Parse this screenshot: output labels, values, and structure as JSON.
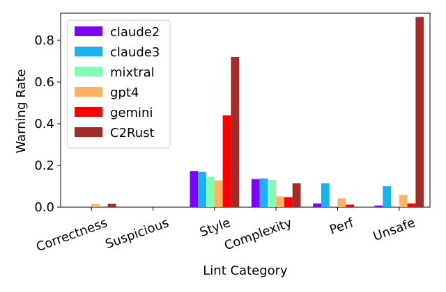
{
  "chart_data": {
    "type": "bar",
    "xlabel": "Lint Category",
    "ylabel": "Warning Rate",
    "categories": [
      "Correctness",
      "Suspicious",
      "Style",
      "Complexity",
      "Perf",
      "Unsafe"
    ],
    "ylim": [
      0,
      0.93
    ],
    "yticks": [
      "0.0",
      "0.2",
      "0.4",
      "0.6",
      "0.8"
    ],
    "grid": false,
    "legend_position": "top-left",
    "series": [
      {
        "name": "claude2",
        "color": "#8000ff",
        "values": [
          0.0,
          0.0,
          0.173,
          0.135,
          0.018,
          0.008
        ]
      },
      {
        "name": "claude3",
        "color": "#1ab2f2",
        "values": [
          0.0,
          0.0,
          0.17,
          0.138,
          0.115,
          0.101
        ]
      },
      {
        "name": "mixtral",
        "color": "#80ffb4",
        "values": [
          0.0,
          0.0,
          0.145,
          0.13,
          0.0,
          0.0
        ]
      },
      {
        "name": "gpt4",
        "color": "#ffb360",
        "values": [
          0.015,
          0.0,
          0.128,
          0.052,
          0.042,
          0.059
        ]
      },
      {
        "name": "gemini",
        "color": "#ff0000",
        "values": [
          0.0,
          0.0,
          0.44,
          0.048,
          0.012,
          0.018
        ]
      },
      {
        "name": "C2Rust",
        "color": "#a52a2a",
        "values": [
          0.017,
          0.0,
          0.72,
          0.115,
          0.0,
          0.912
        ]
      }
    ]
  }
}
